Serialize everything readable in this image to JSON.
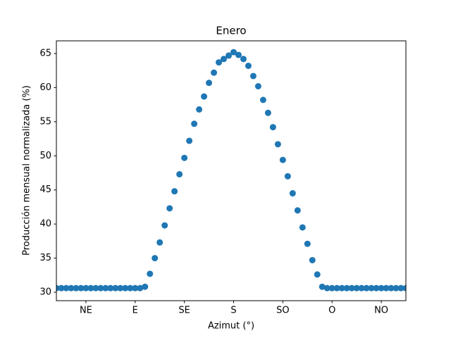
{
  "chart_data": {
    "type": "scatter",
    "title": "Enero",
    "xlabel": "Azimut (°)",
    "ylabel": "Producción mensual normalizada (%)",
    "x": [
      18,
      22.5,
      27,
      31.5,
      36,
      40.5,
      45,
      49.5,
      54,
      58.5,
      63,
      67.5,
      72,
      76.5,
      81,
      85.5,
      90,
      94.5,
      99,
      103.5,
      108,
      112.5,
      117,
      121.5,
      126,
      130.5,
      135,
      139.5,
      144,
      148.5,
      153,
      157.5,
      162,
      166.5,
      171,
      175.5,
      180,
      184.5,
      189,
      193.5,
      198,
      202.5,
      207,
      211.5,
      216,
      220.5,
      225,
      229.5,
      234,
      238.5,
      243,
      247.5,
      252,
      256.5,
      261,
      265.5,
      270,
      274.5,
      279,
      283.5,
      288,
      292.5,
      297,
      301.5,
      306,
      310.5,
      315,
      319.5,
      324,
      328.5,
      333,
      337.5
    ],
    "values": [
      30.6,
      30.6,
      30.6,
      30.6,
      30.6,
      30.6,
      30.6,
      30.6,
      30.6,
      30.6,
      30.6,
      30.6,
      30.6,
      30.6,
      30.6,
      30.6,
      30.6,
      30.6,
      30.8,
      32.7,
      35.0,
      37.3,
      39.8,
      42.3,
      44.8,
      47.3,
      49.7,
      52.2,
      54.7,
      56.8,
      58.7,
      60.7,
      62.2,
      63.7,
      64.2,
      64.7,
      65.2,
      64.8,
      64.2,
      63.2,
      61.7,
      60.2,
      58.2,
      56.3,
      54.2,
      51.7,
      49.4,
      47.0,
      44.5,
      42.0,
      39.5,
      37.1,
      34.7,
      32.6,
      30.8,
      30.6,
      30.6,
      30.6,
      30.6,
      30.6,
      30.6,
      30.6,
      30.6,
      30.6,
      30.6,
      30.6,
      30.6,
      30.6,
      30.6,
      30.6,
      30.6,
      30.6
    ],
    "color": "#1f77b4",
    "xlim": [
      18,
      337.5
    ],
    "xticks": [
      {
        "value": 45,
        "label": "NE"
      },
      {
        "value": 90,
        "label": "E"
      },
      {
        "value": 135,
        "label": "SE"
      },
      {
        "value": 180,
        "label": "S"
      },
      {
        "value": 225,
        "label": "SO"
      },
      {
        "value": 270,
        "label": "O"
      },
      {
        "value": 315,
        "label": "NO"
      }
    ],
    "ylim": [
      28.76,
      66.86
    ],
    "yticks": [
      30,
      35,
      40,
      45,
      50,
      55,
      60,
      65
    ]
  }
}
